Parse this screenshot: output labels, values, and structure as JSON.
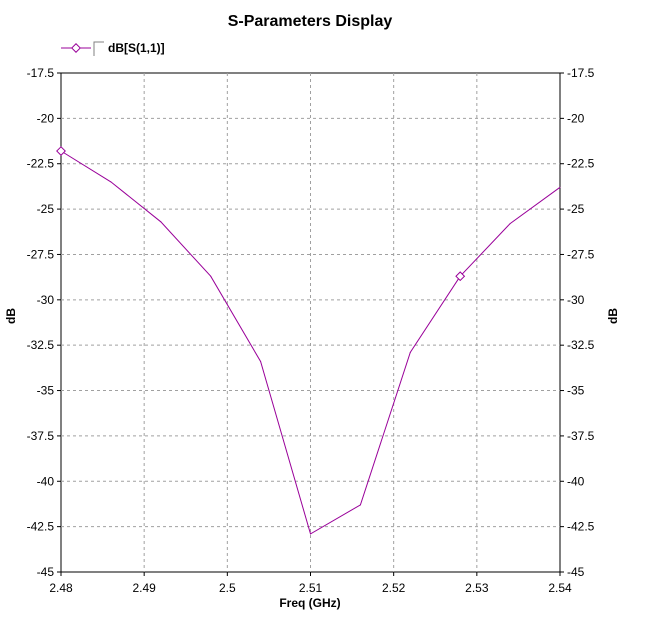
{
  "chart_data": {
    "type": "line",
    "title": "S-Parameters Display",
    "xlabel": "Freq (GHz)",
    "ylabel": "dB",
    "ylabel_right": "dB",
    "xlim": [
      2.48,
      2.54
    ],
    "ylim": [
      -45,
      -17.5
    ],
    "x_ticks": [
      2.48,
      2.49,
      2.5,
      2.51,
      2.52,
      2.53,
      2.54
    ],
    "x_tick_labels": [
      "2.48",
      "2.49",
      "2.5",
      "2.51",
      "2.52",
      "2.53",
      "2.54"
    ],
    "y_ticks": [
      -17.5,
      -20,
      -22.5,
      -25,
      -27.5,
      -30,
      -32.5,
      -35,
      -37.5,
      -40,
      -42.5,
      -45
    ],
    "y_tick_labels": [
      "-17.5",
      "-20",
      "-22.5",
      "-25",
      "-27.5",
      "-30",
      "-32.5",
      "-35",
      "-37.5",
      "-40",
      "-42.5",
      "-45"
    ],
    "grid": true,
    "legend_position": "top-left",
    "series": [
      {
        "name": "dB[S(1,1)]",
        "color": "#990099",
        "marker": "diamond",
        "marked_points": [
          0,
          8,
          15
        ],
        "x": [
          2.48,
          2.486,
          2.492,
          2.498,
          2.504,
          2.51,
          2.516,
          2.522,
          2.528,
          2.534,
          2.54
        ],
        "y": [
          -21.8,
          -23.5,
          -25.7,
          -28.7,
          -33.4,
          -42.9,
          -41.3,
          -32.9,
          -28.7,
          -25.8,
          -23.8
        ]
      }
    ]
  }
}
